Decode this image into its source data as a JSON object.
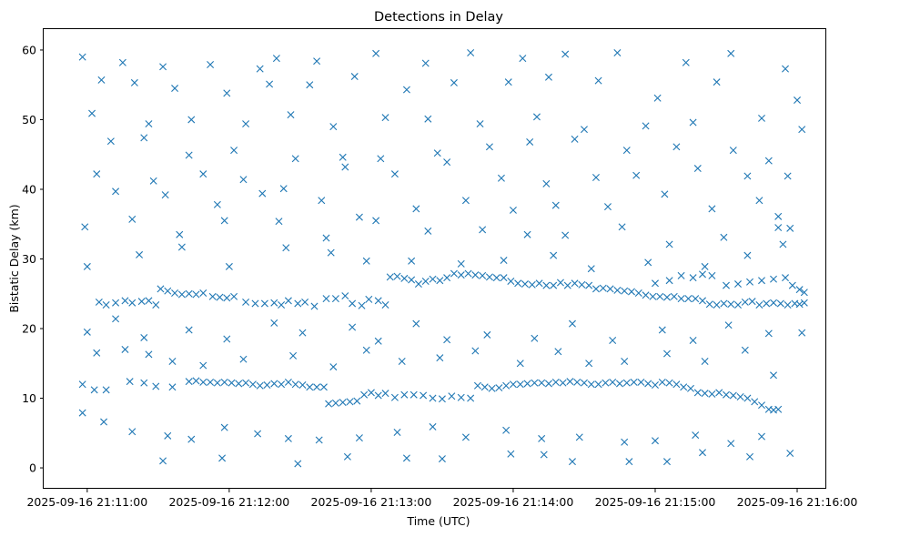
{
  "chart_data": {
    "type": "scatter",
    "title": "Detections in Delay",
    "xlabel": "Time (UTC)",
    "ylabel": "Bistatic Delay (km)",
    "marker": "x",
    "color": "#1f77b4",
    "x_ticks": [
      "2025-09-16 21:11:00",
      "2025-09-16 21:12:00",
      "2025-09-16 21:13:00",
      "2025-09-16 21:14:00",
      "2025-09-16 21:15:00",
      "2025-09-16 21:16:00"
    ],
    "y_ticks": [
      "0",
      "10",
      "20",
      "30",
      "40",
      "50",
      "60"
    ],
    "xlim_seconds_after_21_10_00": [
      41.6,
      372.3
    ],
    "ylim": [
      -3.0,
      63.0
    ],
    "grid": false,
    "tracks_note_seconds": [
      {
        "from_s": 75,
        "to_s": 95,
        "delay_km": 24.9
      },
      {
        "from_s": 100,
        "to_s": 160,
        "delay_km": 12.1
      },
      {
        "from_s": 185,
        "to_s": 215,
        "delay_km": 27.5
      },
      {
        "from_s": 240,
        "to_s": 330,
        "delay_km": 12.2
      }
    ],
    "points": [
      [
        58,
        59.0
      ],
      [
        75,
        58.2
      ],
      [
        92,
        57.6
      ],
      [
        112,
        57.9
      ],
      [
        133,
        57.3
      ],
      [
        140,
        58.8
      ],
      [
        157,
        58.4
      ],
      [
        182,
        59.5
      ],
      [
        203,
        58.1
      ],
      [
        222,
        59.6
      ],
      [
        244,
        58.8
      ],
      [
        262,
        59.4
      ],
      [
        284,
        59.6
      ],
      [
        313,
        58.2
      ],
      [
        332,
        59.5
      ],
      [
        355,
        57.3
      ],
      [
        66,
        55.7
      ],
      [
        80,
        55.3
      ],
      [
        97,
        54.5
      ],
      [
        119,
        53.8
      ],
      [
        137,
        55.1
      ],
      [
        154,
        55.0
      ],
      [
        173,
        56.2
      ],
      [
        195,
        54.3
      ],
      [
        215,
        55.3
      ],
      [
        238,
        55.4
      ],
      [
        255,
        56.1
      ],
      [
        276,
        55.6
      ],
      [
        301,
        53.1
      ],
      [
        326,
        55.4
      ],
      [
        360,
        52.8
      ],
      [
        62,
        50.9
      ],
      [
        86,
        49.4
      ],
      [
        104,
        50.0
      ],
      [
        127,
        49.4
      ],
      [
        146,
        50.7
      ],
      [
        164,
        49.0
      ],
      [
        186,
        50.3
      ],
      [
        204,
        50.1
      ],
      [
        226,
        49.4
      ],
      [
        250,
        50.4
      ],
      [
        270,
        48.6
      ],
      [
        296,
        49.1
      ],
      [
        316,
        49.6
      ],
      [
        345,
        50.2
      ],
      [
        362,
        48.6
      ],
      [
        70,
        46.9
      ],
      [
        84,
        47.4
      ],
      [
        103,
        44.9
      ],
      [
        122,
        45.6
      ],
      [
        148,
        44.4
      ],
      [
        168,
        44.6
      ],
      [
        184,
        44.4
      ],
      [
        208,
        45.2
      ],
      [
        230,
        46.1
      ],
      [
        247,
        46.8
      ],
      [
        266,
        47.2
      ],
      [
        288,
        45.6
      ],
      [
        309,
        46.1
      ],
      [
        333,
        45.6
      ],
      [
        348,
        44.1
      ],
      [
        64,
        42.2
      ],
      [
        88,
        41.2
      ],
      [
        109,
        42.2
      ],
      [
        126,
        41.4
      ],
      [
        143,
        40.1
      ],
      [
        169,
        43.2
      ],
      [
        190,
        42.2
      ],
      [
        212,
        43.9
      ],
      [
        235,
        41.6
      ],
      [
        254,
        40.8
      ],
      [
        275,
        41.7
      ],
      [
        292,
        42.0
      ],
      [
        318,
        43.0
      ],
      [
        339,
        41.9
      ],
      [
        356,
        41.9
      ],
      [
        72,
        39.7
      ],
      [
        93,
        39.2
      ],
      [
        115,
        37.8
      ],
      [
        134,
        39.4
      ],
      [
        159,
        38.4
      ],
      [
        175,
        36.0
      ],
      [
        199,
        37.2
      ],
      [
        220,
        38.4
      ],
      [
        240,
        37.0
      ],
      [
        258,
        37.7
      ],
      [
        280,
        37.5
      ],
      [
        304,
        39.3
      ],
      [
        324,
        37.2
      ],
      [
        344,
        38.4
      ],
      [
        352,
        36.1
      ],
      [
        79,
        35.7
      ],
      [
        99,
        33.5
      ],
      [
        118,
        35.5
      ],
      [
        141,
        35.4
      ],
      [
        161,
        33.0
      ],
      [
        182,
        35.5
      ],
      [
        204,
        34.0
      ],
      [
        227,
        34.2
      ],
      [
        246,
        33.5
      ],
      [
        262,
        33.4
      ],
      [
        286,
        34.6
      ],
      [
        306,
        32.1
      ],
      [
        329,
        33.1
      ],
      [
        352,
        34.5
      ],
      [
        357,
        34.4
      ],
      [
        60,
        28.9
      ],
      [
        82,
        30.6
      ],
      [
        100,
        31.7
      ],
      [
        120,
        28.9
      ],
      [
        144,
        31.6
      ],
      [
        163,
        30.9
      ],
      [
        178,
        29.7
      ],
      [
        197,
        29.7
      ],
      [
        218,
        29.3
      ],
      [
        236,
        29.8
      ],
      [
        257,
        30.5
      ],
      [
        273,
        28.6
      ],
      [
        297,
        29.5
      ],
      [
        321,
        28.9
      ],
      [
        339,
        30.5
      ],
      [
        354,
        32.1
      ],
      [
        59,
        34.6
      ],
      [
        65,
        23.8
      ],
      [
        68,
        23.4
      ],
      [
        72,
        23.7
      ],
      [
        76,
        24.0
      ],
      [
        79,
        23.7
      ],
      [
        83,
        23.9
      ],
      [
        86,
        24.0
      ],
      [
        89,
        23.4
      ],
      [
        91,
        25.7
      ],
      [
        94,
        25.4
      ],
      [
        97,
        25.1
      ],
      [
        100,
        24.9
      ],
      [
        103,
        25.0
      ],
      [
        106,
        24.9
      ],
      [
        109,
        25.1
      ],
      [
        113,
        24.6
      ],
      [
        116,
        24.5
      ],
      [
        119,
        24.4
      ],
      [
        122,
        24.6
      ],
      [
        127,
        23.8
      ],
      [
        131,
        23.6
      ],
      [
        135,
        23.6
      ],
      [
        139,
        23.7
      ],
      [
        142,
        23.4
      ],
      [
        145,
        24.0
      ],
      [
        149,
        23.6
      ],
      [
        152,
        23.8
      ],
      [
        156,
        23.2
      ],
      [
        161,
        24.3
      ],
      [
        165,
        24.3
      ],
      [
        169,
        24.7
      ],
      [
        172,
        23.6
      ],
      [
        176,
        23.3
      ],
      [
        179,
        24.2
      ],
      [
        183,
        24.0
      ],
      [
        186,
        23.4
      ],
      [
        188,
        27.4
      ],
      [
        191,
        27.5
      ],
      [
        194,
        27.2
      ],
      [
        197,
        27.0
      ],
      [
        200,
        26.4
      ],
      [
        203,
        26.8
      ],
      [
        206,
        27.1
      ],
      [
        209,
        26.9
      ],
      [
        212,
        27.3
      ],
      [
        215,
        27.9
      ],
      [
        218,
        27.7
      ],
      [
        221,
        27.9
      ],
      [
        224,
        27.7
      ],
      [
        227,
        27.6
      ],
      [
        230,
        27.4
      ],
      [
        233,
        27.3
      ],
      [
        236,
        27.3
      ],
      [
        239,
        26.8
      ],
      [
        242,
        26.5
      ],
      [
        245,
        26.4
      ],
      [
        248,
        26.3
      ],
      [
        251,
        26.5
      ],
      [
        254,
        26.2
      ],
      [
        257,
        26.2
      ],
      [
        260,
        26.6
      ],
      [
        263,
        26.2
      ],
      [
        266,
        26.5
      ],
      [
        269,
        26.3
      ],
      [
        272,
        26.2
      ],
      [
        275,
        25.7
      ],
      [
        278,
        25.8
      ],
      [
        281,
        25.7
      ],
      [
        284,
        25.5
      ],
      [
        287,
        25.4
      ],
      [
        290,
        25.3
      ],
      [
        293,
        25.1
      ],
      [
        296,
        24.8
      ],
      [
        299,
        24.6
      ],
      [
        302,
        24.6
      ],
      [
        305,
        24.5
      ],
      [
        308,
        24.6
      ],
      [
        311,
        24.3
      ],
      [
        314,
        24.3
      ],
      [
        317,
        24.3
      ],
      [
        320,
        24.0
      ],
      [
        323,
        23.5
      ],
      [
        326,
        23.4
      ],
      [
        329,
        23.6
      ],
      [
        332,
        23.5
      ],
      [
        335,
        23.4
      ],
      [
        338,
        23.8
      ],
      [
        341,
        23.9
      ],
      [
        344,
        23.4
      ],
      [
        347,
        23.6
      ],
      [
        350,
        23.7
      ],
      [
        353,
        23.6
      ],
      [
        356,
        23.4
      ],
      [
        359,
        23.6
      ],
      [
        361,
        23.5
      ],
      [
        363,
        23.7
      ],
      [
        330,
        26.2
      ],
      [
        335,
        26.4
      ],
      [
        340,
        26.7
      ],
      [
        345,
        26.9
      ],
      [
        350,
        27.1
      ],
      [
        355,
        27.3
      ],
      [
        358,
        26.2
      ],
      [
        361,
        25.6
      ],
      [
        363,
        25.2
      ],
      [
        300,
        26.5
      ],
      [
        306,
        26.9
      ],
      [
        311,
        27.6
      ],
      [
        316,
        27.3
      ],
      [
        320,
        27.8
      ],
      [
        324,
        27.6
      ],
      [
        60,
        19.5
      ],
      [
        72,
        21.4
      ],
      [
        84,
        18.7
      ],
      [
        103,
        19.8
      ],
      [
        119,
        18.5
      ],
      [
        139,
        20.8
      ],
      [
        151,
        19.4
      ],
      [
        172,
        20.2
      ],
      [
        183,
        18.2
      ],
      [
        199,
        20.7
      ],
      [
        212,
        18.4
      ],
      [
        229,
        19.1
      ],
      [
        249,
        18.6
      ],
      [
        265,
        20.7
      ],
      [
        282,
        18.3
      ],
      [
        303,
        19.8
      ],
      [
        316,
        18.3
      ],
      [
        331,
        20.5
      ],
      [
        348,
        19.3
      ],
      [
        362,
        19.4
      ],
      [
        64,
        16.5
      ],
      [
        76,
        17.0
      ],
      [
        86,
        16.3
      ],
      [
        96,
        15.3
      ],
      [
        109,
        14.7
      ],
      [
        126,
        15.6
      ],
      [
        147,
        16.1
      ],
      [
        164,
        14.5
      ],
      [
        178,
        16.9
      ],
      [
        193,
        15.3
      ],
      [
        209,
        15.8
      ],
      [
        224,
        16.8
      ],
      [
        243,
        15.0
      ],
      [
        259,
        16.7
      ],
      [
        272,
        15.0
      ],
      [
        287,
        15.3
      ],
      [
        305,
        16.4
      ],
      [
        321,
        15.3
      ],
      [
        338,
        16.9
      ],
      [
        350,
        13.3
      ],
      [
        58,
        12.0
      ],
      [
        63,
        11.2
      ],
      [
        68,
        11.2
      ],
      [
        78,
        12.4
      ],
      [
        84,
        12.2
      ],
      [
        89,
        11.7
      ],
      [
        96,
        11.6
      ],
      [
        103,
        12.4
      ],
      [
        106,
        12.5
      ],
      [
        109,
        12.3
      ],
      [
        112,
        12.3
      ],
      [
        115,
        12.2
      ],
      [
        118,
        12.3
      ],
      [
        121,
        12.2
      ],
      [
        124,
        12.1
      ],
      [
        127,
        12.2
      ],
      [
        130,
        12.0
      ],
      [
        133,
        11.8
      ],
      [
        136,
        11.9
      ],
      [
        139,
        12.1
      ],
      [
        142,
        12.0
      ],
      [
        145,
        12.3
      ],
      [
        148,
        12.0
      ],
      [
        151,
        11.9
      ],
      [
        154,
        11.6
      ],
      [
        157,
        11.6
      ],
      [
        160,
        11.6
      ],
      [
        162,
        9.2
      ],
      [
        165,
        9.3
      ],
      [
        168,
        9.4
      ],
      [
        171,
        9.5
      ],
      [
        174,
        9.6
      ],
      [
        177,
        10.5
      ],
      [
        180,
        10.8
      ],
      [
        183,
        10.4
      ],
      [
        186,
        10.7
      ],
      [
        190,
        10.1
      ],
      [
        194,
        10.5
      ],
      [
        198,
        10.5
      ],
      [
        202,
        10.4
      ],
      [
        206,
        10.0
      ],
      [
        210,
        9.9
      ],
      [
        214,
        10.3
      ],
      [
        218,
        10.1
      ],
      [
        222,
        10.0
      ],
      [
        225,
        11.8
      ],
      [
        228,
        11.6
      ],
      [
        231,
        11.4
      ],
      [
        234,
        11.5
      ],
      [
        237,
        11.8
      ],
      [
        240,
        12.0
      ],
      [
        243,
        12.0
      ],
      [
        246,
        12.1
      ],
      [
        249,
        12.2
      ],
      [
        252,
        12.2
      ],
      [
        255,
        12.1
      ],
      [
        258,
        12.3
      ],
      [
        261,
        12.2
      ],
      [
        264,
        12.4
      ],
      [
        267,
        12.3
      ],
      [
        270,
        12.2
      ],
      [
        273,
        12.0
      ],
      [
        276,
        12.0
      ],
      [
        279,
        12.2
      ],
      [
        282,
        12.3
      ],
      [
        285,
        12.1
      ],
      [
        288,
        12.2
      ],
      [
        291,
        12.3
      ],
      [
        294,
        12.3
      ],
      [
        297,
        12.1
      ],
      [
        300,
        11.9
      ],
      [
        303,
        12.3
      ],
      [
        306,
        12.2
      ],
      [
        309,
        12.0
      ],
      [
        312,
        11.6
      ],
      [
        315,
        11.4
      ],
      [
        318,
        10.8
      ],
      [
        321,
        10.7
      ],
      [
        324,
        10.6
      ],
      [
        327,
        10.8
      ],
      [
        330,
        10.5
      ],
      [
        333,
        10.4
      ],
      [
        336,
        10.2
      ],
      [
        339,
        10.0
      ],
      [
        342,
        9.5
      ],
      [
        345,
        9.0
      ],
      [
        348,
        8.4
      ],
      [
        350,
        8.3
      ],
      [
        352,
        8.4
      ],
      [
        58,
        7.9
      ],
      [
        67,
        6.6
      ],
      [
        79,
        5.2
      ],
      [
        94,
        4.6
      ],
      [
        104,
        4.1
      ],
      [
        118,
        5.8
      ],
      [
        132,
        4.9
      ],
      [
        145,
        4.2
      ],
      [
        158,
        4.0
      ],
      [
        175,
        4.3
      ],
      [
        191,
        5.1
      ],
      [
        206,
        5.9
      ],
      [
        220,
        4.4
      ],
      [
        237,
        5.4
      ],
      [
        252,
        4.2
      ],
      [
        268,
        4.4
      ],
      [
        287,
        3.7
      ],
      [
        300,
        3.9
      ],
      [
        317,
        4.7
      ],
      [
        332,
        3.5
      ],
      [
        345,
        4.5
      ],
      [
        92,
        1.0
      ],
      [
        117,
        1.4
      ],
      [
        149,
        0.6
      ],
      [
        170,
        1.6
      ],
      [
        195,
        1.4
      ],
      [
        210,
        1.3
      ],
      [
        239,
        2.0
      ],
      [
        253,
        1.9
      ],
      [
        265,
        0.9
      ],
      [
        289,
        0.9
      ],
      [
        305,
        0.9
      ],
      [
        320,
        2.2
      ],
      [
        340,
        1.6
      ],
      [
        357,
        2.1
      ]
    ]
  }
}
